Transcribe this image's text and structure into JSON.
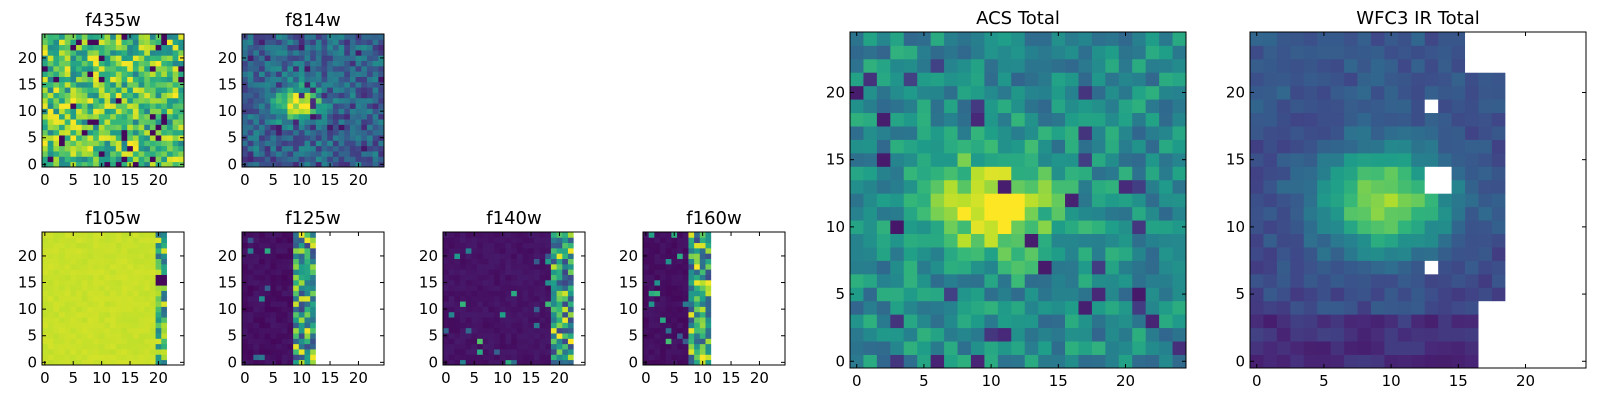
{
  "figure": {
    "colormap": "viridis",
    "missing_color": "#ffffff"
  },
  "chart_data": [
    {
      "id": "f435w",
      "type": "heatmap",
      "title": "f435w",
      "grid": [
        25,
        25
      ],
      "xlim": [
        0,
        24
      ],
      "ylim": [
        0,
        24
      ],
      "xticks": [
        0,
        5,
        10,
        15,
        20
      ],
      "yticks": [
        0,
        5,
        10,
        15,
        20
      ],
      "image": {
        "kind": "noise",
        "base": 0.72,
        "spread": 0.28,
        "source_peak": 0.0,
        "center": [
          10,
          11
        ],
        "sigma": [
          3.0,
          2.5
        ],
        "mask_from_x": null,
        "floor_fraction": 0.06,
        "seed": 11
      }
    },
    {
      "id": "f814w",
      "type": "heatmap",
      "title": "f814w",
      "grid": [
        25,
        25
      ],
      "xlim": [
        0,
        24
      ],
      "ylim": [
        0,
        24
      ],
      "xticks": [
        0,
        5,
        10,
        15,
        20
      ],
      "yticks": [
        0,
        5,
        10,
        15,
        20
      ],
      "image": {
        "kind": "source",
        "base": 0.33,
        "spread": 0.16,
        "source_peak": 0.62,
        "center": [
          9.5,
          11.5
        ],
        "sigma": [
          2.8,
          2.3
        ],
        "mask_from_x": null,
        "floor_fraction": 0.1,
        "seed": 23
      }
    },
    {
      "id": "f105w",
      "type": "heatmap",
      "title": "f105w",
      "grid": [
        25,
        25
      ],
      "xlim": [
        0,
        24
      ],
      "ylim": [
        0,
        24
      ],
      "xticks": [
        0,
        5,
        10,
        15,
        20
      ],
      "yticks": [
        0,
        5,
        10,
        15,
        20
      ],
      "image": {
        "kind": "saturated",
        "base": 0.93,
        "spread": 0.02,
        "source_peak": 0.0,
        "center": [
          10,
          11
        ],
        "sigma": [
          3.0,
          3.0
        ],
        "mask_from_x": 22,
        "floor_fraction": 0.0,
        "seed": 37
      }
    },
    {
      "id": "f125w",
      "type": "heatmap",
      "title": "f125w",
      "grid": [
        25,
        25
      ],
      "xlim": [
        0,
        24
      ],
      "ylim": [
        0,
        24
      ],
      "xticks": [
        0,
        5,
        10,
        15,
        20
      ],
      "yticks": [
        0,
        5,
        10,
        15,
        20
      ],
      "image": {
        "kind": "edge",
        "base": 0.04,
        "spread": 0.05,
        "source_peak": 0.0,
        "center": [
          10,
          11
        ],
        "sigma": [
          3.0,
          3.0
        ],
        "mask_from_x": 13,
        "floor_fraction": 0.0,
        "seed": 41
      }
    },
    {
      "id": "f140w",
      "type": "heatmap",
      "title": "f140w",
      "grid": [
        25,
        25
      ],
      "xlim": [
        0,
        24
      ],
      "ylim": [
        0,
        24
      ],
      "xticks": [
        0,
        5,
        10,
        15,
        20
      ],
      "yticks": [
        0,
        5,
        10,
        15,
        20
      ],
      "image": {
        "kind": "edge",
        "base": 0.05,
        "spread": 0.04,
        "source_peak": 0.0,
        "center": [
          10,
          11
        ],
        "sigma": [
          3.0,
          3.0
        ],
        "mask_from_x": 23,
        "floor_fraction": 0.0,
        "seed": 53
      }
    },
    {
      "id": "f160w",
      "type": "heatmap",
      "title": "f160w",
      "grid": [
        25,
        25
      ],
      "xlim": [
        0,
        24
      ],
      "ylim": [
        0,
        24
      ],
      "xticks": [
        0,
        5,
        10,
        15,
        20
      ],
      "yticks": [
        0,
        5,
        10,
        15,
        20
      ],
      "image": {
        "kind": "edge",
        "base": 0.04,
        "spread": 0.04,
        "source_peak": 0.0,
        "center": [
          10,
          11
        ],
        "sigma": [
          3.0,
          3.0
        ],
        "mask_from_x": 12,
        "floor_fraction": 0.0,
        "seed": 67
      }
    },
    {
      "id": "acs_total",
      "type": "heatmap",
      "title": "ACS Total",
      "grid": [
        25,
        25
      ],
      "xlim": [
        0,
        24
      ],
      "ylim": [
        0,
        24
      ],
      "xticks": [
        0,
        5,
        10,
        15,
        20
      ],
      "yticks": [
        0,
        5,
        10,
        15,
        20
      ],
      "image": {
        "kind": "source",
        "base": 0.48,
        "spread": 0.16,
        "source_peak": 0.5,
        "center": [
          9.8,
          11.6
        ],
        "sigma": [
          3.4,
          2.6
        ],
        "mask_from_x": null,
        "floor_fraction": 0.06,
        "seed": 79
      }
    },
    {
      "id": "wfc3_ir_total",
      "type": "heatmap",
      "title": "WFC3 IR Total",
      "grid": [
        25,
        25
      ],
      "xlim": [
        0,
        24
      ],
      "ylim": [
        0,
        24
      ],
      "xticks": [
        0,
        5,
        10,
        15,
        20
      ],
      "yticks": [
        0,
        5,
        10,
        15,
        20
      ],
      "image": {
        "kind": "wfc3",
        "base": 0.3,
        "spread": 0.08,
        "source_peak": 0.6,
        "center": [
          9.5,
          12.0
        ],
        "sigma": [
          3.6,
          2.8
        ],
        "mask_from_x": 17,
        "floor_fraction": 0.05,
        "seed": 97
      }
    }
  ]
}
